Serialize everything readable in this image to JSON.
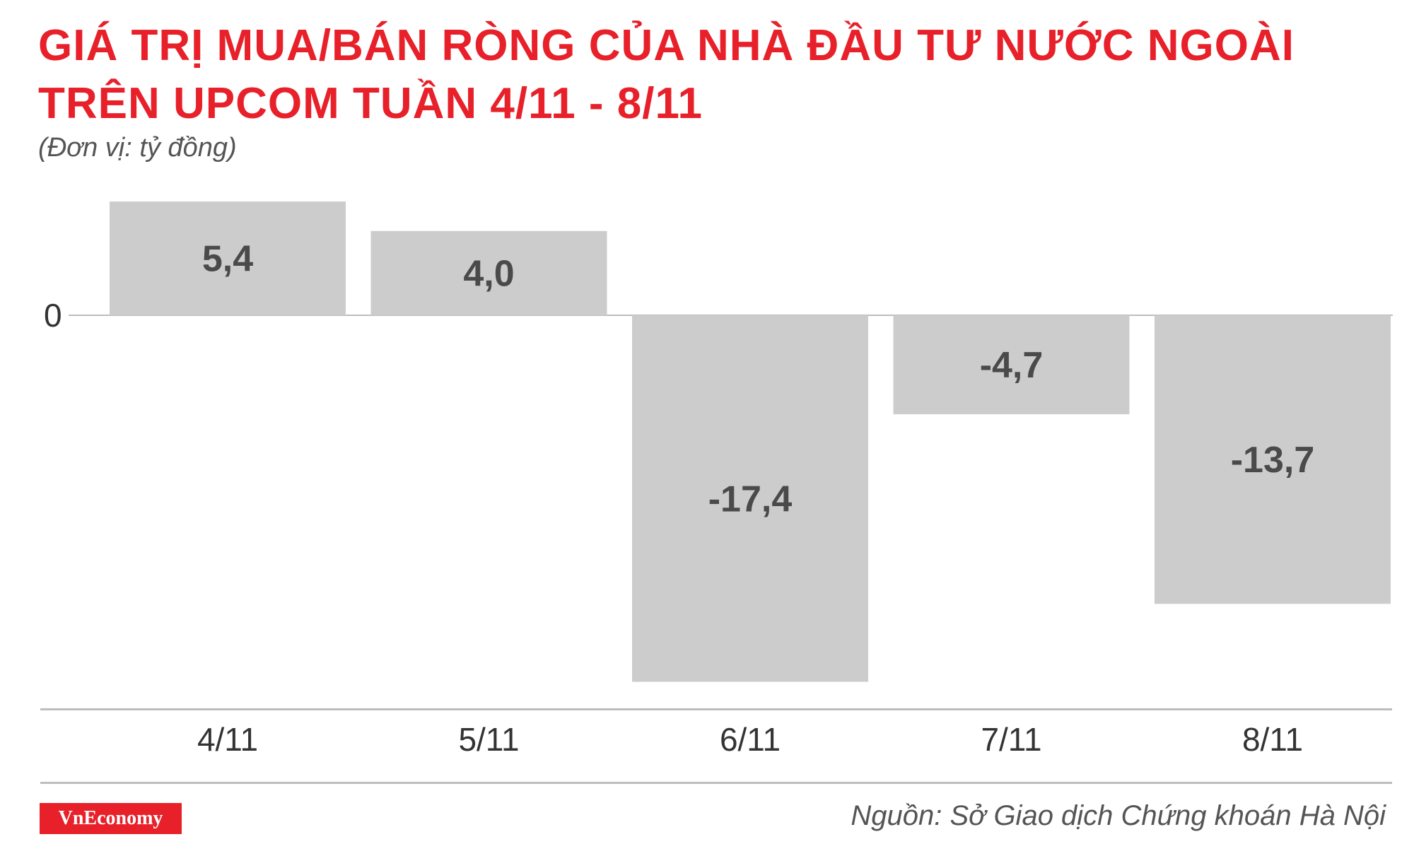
{
  "header": {
    "title_line_1": "GIÁ TRỊ MUA/BÁN RÒNG CỦA NHÀ ĐẦU TƯ NƯỚC NGOÀI",
    "title_line_2": "TRÊN UPCOM TUẦN 4/11 - 8/11",
    "unit": "(Đơn vị: tỷ đồng)"
  },
  "colors": {
    "title": "#e8202a",
    "bar": "#cccccc",
    "value_label": "#4a4a4a",
    "tick_label": "#333333",
    "brand_bg": "#e8202a"
  },
  "chart_data": {
    "type": "bar",
    "categories": [
      "4/11",
      "5/11",
      "6/11",
      "7/11",
      "8/11"
    ],
    "values": [
      5.4,
      4.0,
      -17.4,
      -4.7,
      -13.7
    ],
    "data_labels": [
      "5,4",
      "4,0",
      "-17,4",
      "-4,7",
      "-13,7"
    ],
    "zero_label": "0",
    "title": "GIÁ TRỊ MUA/BÁN RÒNG CỦA NHÀ ĐẦU TƯ NƯỚC NGOÀI TRÊN UPCOM TUẦN 4/11 - 8/11",
    "xlabel": "",
    "ylabel": "",
    "grid": false
  },
  "footer": {
    "brand": "VnEconomy",
    "source": "Nguồn: Sở Giao dịch Chứng khoán Hà Nội"
  }
}
